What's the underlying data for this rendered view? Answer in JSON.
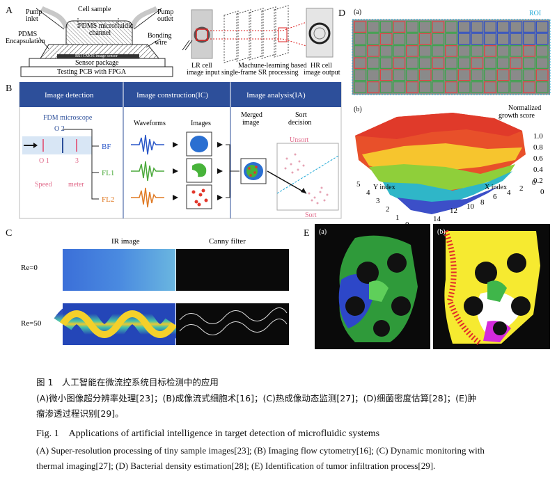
{
  "panel_a": {
    "label": "A",
    "pump_inlet": "Pump\ninlet",
    "cell_sample": "Cell sample",
    "pump_outlet": "Pump\noutlet",
    "pdms_channel": "PDMS microfluidic\nchannel",
    "pdms_encapsulation": "PDMS\nEncapsulation",
    "bonding_wire": "Bonding\nwire",
    "sensor_chip": "BSI CMOS image sensor",
    "sensor_package": "Sensor package",
    "testing_pcb": "Testing PCB with FPGA",
    "lr_image": "LR cell\nimage input",
    "ml_processing": "Machune-learning based\nsingle-frame SR processing",
    "hr_image": "HR cell\nimage output"
  },
  "panel_b": {
    "label": "B",
    "section_1": "Image detection",
    "section_2": "Image construction(IC)",
    "section_3": "Image analysis(IA)",
    "microscope": "FDM microscope",
    "marks": [
      "O 2",
      "O 1",
      "3"
    ],
    "speed": "Speed",
    "meter": "meter",
    "channels": [
      "BF",
      "FL1",
      "FL2"
    ],
    "waveforms": "Waveforms",
    "images": "Images",
    "merged": "Merged\nimage",
    "sort_decision": "Sort\ndecision",
    "unsort": "Unsort",
    "sort": "Sort"
  },
  "panel_c": {
    "label": "C",
    "col_1": "IR image",
    "col_2": "Canny filter",
    "row_1": "Re=0",
    "row_2": "Re=50"
  },
  "panel_d": {
    "label": "D",
    "sub_a": "(a)",
    "roi": "ROI",
    "sub_b": "(b)",
    "z_title": "Normalized\ngrowth score",
    "y_label": "Y index",
    "x_label": "X index",
    "z_ticks": [
      "1.0",
      "0.8",
      "0.6",
      "0.4",
      "0.2",
      "0"
    ],
    "y_ticks": [
      "5",
      "4",
      "3",
      "2",
      "1",
      "0"
    ],
    "x_ticks": [
      "14",
      "12",
      "10",
      "8",
      "6",
      "4",
      "2",
      "0"
    ]
  },
  "panel_e": {
    "label": "E",
    "sub_a": "(a)",
    "sub_b": "(b)"
  },
  "caption": {
    "cn_title": "图 1　人工智能在微流控系统目标检测中的应用",
    "cn_line1": "(A)微小图像超分辨率处理[23]；(B)成像流式细胞术[16]；(C)热成像动态监测[27]；(D)细菌密度估算[28]；(E)肿",
    "cn_line2": "瘤渗透过程识别[29]。",
    "en_title": "Fig. 1　Applications of artificial intelligence in target detection of microfluidic systems",
    "en_line1": "(A) Super-resolution processing of tiny sample images[23]; (B) Imaging flow cytometry[16]; (C) Dynamic monitoring with",
    "en_line2": "thermal imaging[27]; (D) Bacterial density estimation[28]; (E) Identification of tumor infiltration process[29]."
  },
  "colors": {
    "blue_header": "#2d4f9a",
    "bf": "#2a57c8",
    "fl1": "#4aa93a",
    "fl2": "#e07a24",
    "pink": "#e06a8a",
    "roi": "#1aa7d6"
  }
}
